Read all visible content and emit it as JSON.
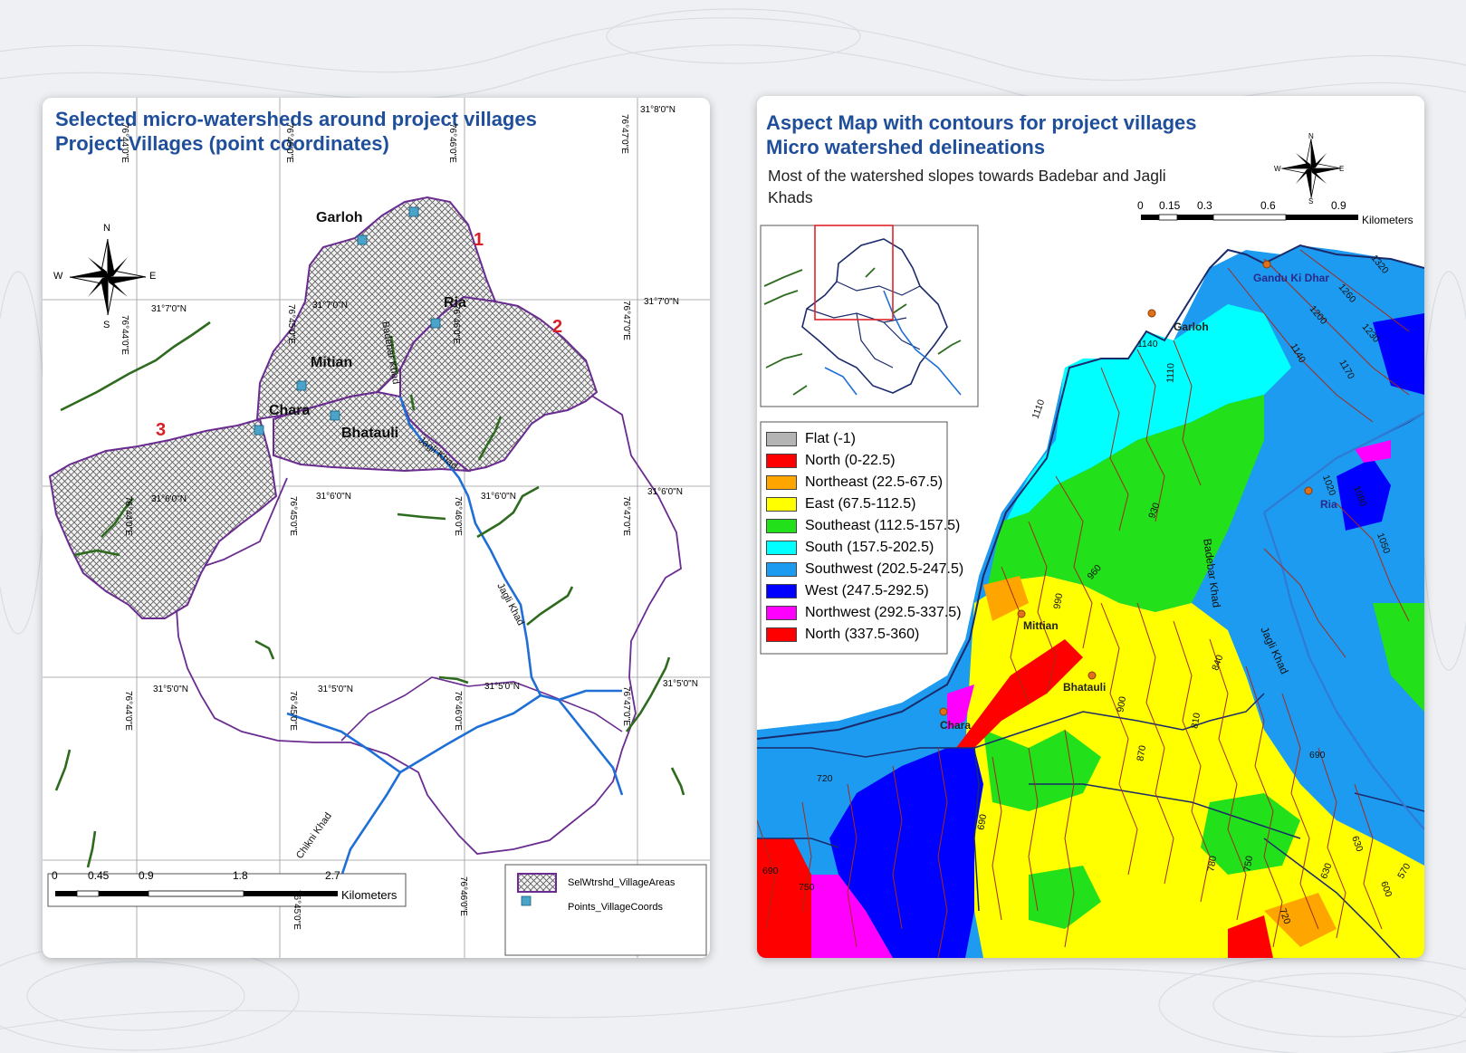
{
  "left_map": {
    "title_line1": "Selected micro-watersheds around project villages",
    "title_line2": "Project Villages (point coordinates)",
    "coords": {
      "t1": "31°8'0\"N",
      "t2": "76°47'0\"E",
      "t3": "76°46'0\"E",
      "t4": "76°45'0\"E",
      "t5": "76°44'0\"E",
      "lat7a": "31°7'0\"N",
      "lat7b": "31°7'0\"N",
      "lat7c": "31°7'0\"N",
      "lat6a": "31°6'0\"N",
      "lat6b": "31°6'0\"N",
      "lat6c": "31°6'0\"N",
      "lat6d": "31°6'0\"N",
      "lat5a": "31°5'0\"N",
      "lat5b": "31°5'0\"N",
      "lat5c": "31°5'0\"N",
      "lat5d": "31°5'0\"N",
      "lon44a": "76°44'0\"E",
      "lon44b": "76°44'0\"E",
      "lon44c": "76°44'0\"E",
      "lon45a": "76°45'0\"E",
      "lon45b": "76°45'0\"E",
      "lon45c": "76°45'0\"E",
      "lon45d": "76°45'0\"E",
      "lon46a": "76°46'0\"E",
      "lon46b": "76°46'0\"E",
      "lon46c": "76°46'0\"E",
      "lon46d": "76°46'0\"E",
      "lon47a": "76°47'0\"E",
      "lon47b": "76°47'0\"E",
      "lon47c": "76°47'0\"E"
    },
    "villages": [
      "Garloh",
      "Ria",
      "Mitian",
      "Chara",
      "Bhatauli"
    ],
    "watershed_numbers": [
      "1",
      "2",
      "3"
    ],
    "streams": [
      "Badebar Khad",
      "Jagli Khad",
      "Jagli Khad",
      "Chikni Khad"
    ],
    "compass": {
      "n": "N",
      "s": "S",
      "e": "E",
      "w": "W"
    },
    "scale": {
      "ticks": [
        "0",
        "0.45",
        "0.9",
        "1.8",
        "2.7"
      ],
      "unit": "Kilometers"
    },
    "legend": {
      "areas": "SelWtrshd_VillageAreas",
      "points": "Points_VillageCoords"
    },
    "colors": {
      "boundary": "#6a2c91",
      "stream": "#1f6fd6",
      "drain": "#2e6b1f",
      "hatch": "#7a7a7a"
    }
  },
  "right_map": {
    "title_line1": "Aspect Map with contours for project villages",
    "title_line2": "Micro watershed delineations",
    "note": "Most of the watershed slopes towards Badebar and Jagli Khads",
    "compass": {
      "n": "N",
      "s": "S",
      "e": "E",
      "w": "W"
    },
    "scale": {
      "ticks": [
        "0",
        "0.15",
        "0.3",
        "0.6",
        "0.9"
      ],
      "unit": "Kilometers"
    },
    "legend": [
      {
        "label": "Flat (-1)",
        "color": "#b4b4b4"
      },
      {
        "label": "North (0-22.5)",
        "color": "#ff0000"
      },
      {
        "label": "Northeast (22.5-67.5)",
        "color": "#ffa500"
      },
      {
        "label": "East (67.5-112.5)",
        "color": "#ffff00"
      },
      {
        "label": "Southeast (112.5-157.5)",
        "color": "#22e01a"
      },
      {
        "label": "South (157.5-202.5)",
        "color": "#00ffff"
      },
      {
        "label": "Southwest (202.5-247.5)",
        "color": "#1d9bf0"
      },
      {
        "label": "West (247.5-292.5)",
        "color": "#0000ff"
      },
      {
        "label": "Northwest (292.5-337.5)",
        "color": "#ff00ff"
      },
      {
        "label": "North (337.5-360)",
        "color": "#ff0000"
      }
    ],
    "villages": [
      "Gandu Ki Dhar",
      "Garloh",
      "Ria",
      "Mittian",
      "Bhatauli",
      "Chara"
    ],
    "streams": [
      "Badebar Khad",
      "Jagli Khad"
    ],
    "contours": [
      "1110",
      "1140",
      "1110",
      "1200",
      "1260",
      "1230",
      "1170",
      "1140",
      "1320",
      "1080",
      "1020",
      "1050",
      "990",
      "960",
      "930",
      "840",
      "900",
      "870",
      "810",
      "780",
      "750",
      "720",
      "690",
      "750",
      "690",
      "630",
      "600",
      "570",
      "720",
      "630",
      "690"
    ]
  }
}
